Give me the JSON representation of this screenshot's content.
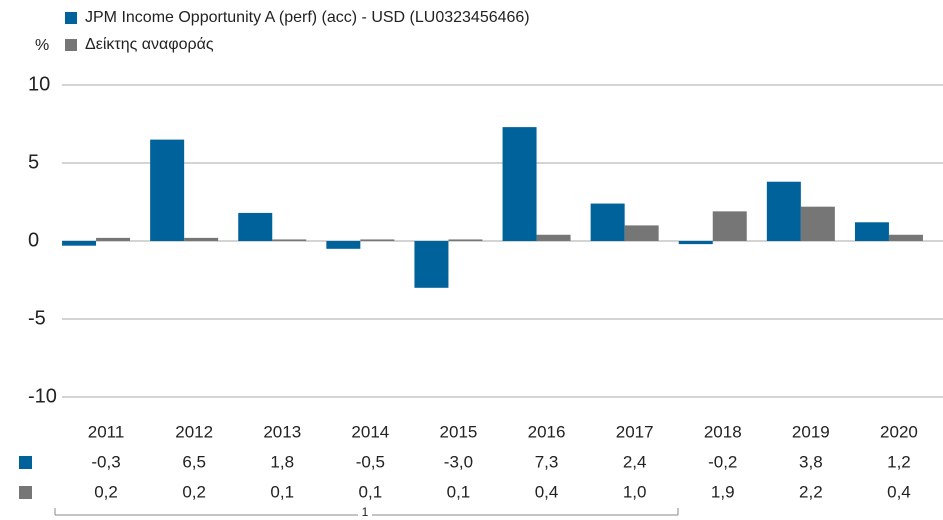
{
  "chart_data": {
    "type": "bar",
    "unit_label": "%",
    "categories": [
      "2011",
      "2012",
      "2013",
      "2014",
      "2015",
      "2016",
      "2017",
      "2018",
      "2019",
      "2020"
    ],
    "series": [
      {
        "name": "JPM Income Opportunity A (perf) (acc) - USD (LU0323456466)",
        "color": "#00629b",
        "values": [
          -0.3,
          6.5,
          1.8,
          -0.5,
          -3.0,
          7.3,
          2.4,
          -0.2,
          3.8,
          1.2
        ],
        "value_labels": [
          "-0,3",
          "6,5",
          "1,8",
          "-0,5",
          "-3,0",
          "7,3",
          "2,4",
          "-0,2",
          "3,8",
          "1,2"
        ]
      },
      {
        "name": "Δείκτης αναφοράς",
        "color": "#767676",
        "values": [
          0.2,
          0.2,
          0.1,
          0.1,
          0.1,
          0.4,
          1.0,
          1.9,
          2.2,
          0.4
        ],
        "value_labels": [
          "0,2",
          "0,2",
          "0,1",
          "0,1",
          "0,1",
          "0,4",
          "1,0",
          "1,9",
          "2,2",
          "0,4"
        ]
      }
    ],
    "ylim": [
      -10,
      10
    ],
    "yticks": [
      10,
      5,
      0,
      -5,
      -10
    ],
    "grid": true,
    "annotation": "1"
  }
}
